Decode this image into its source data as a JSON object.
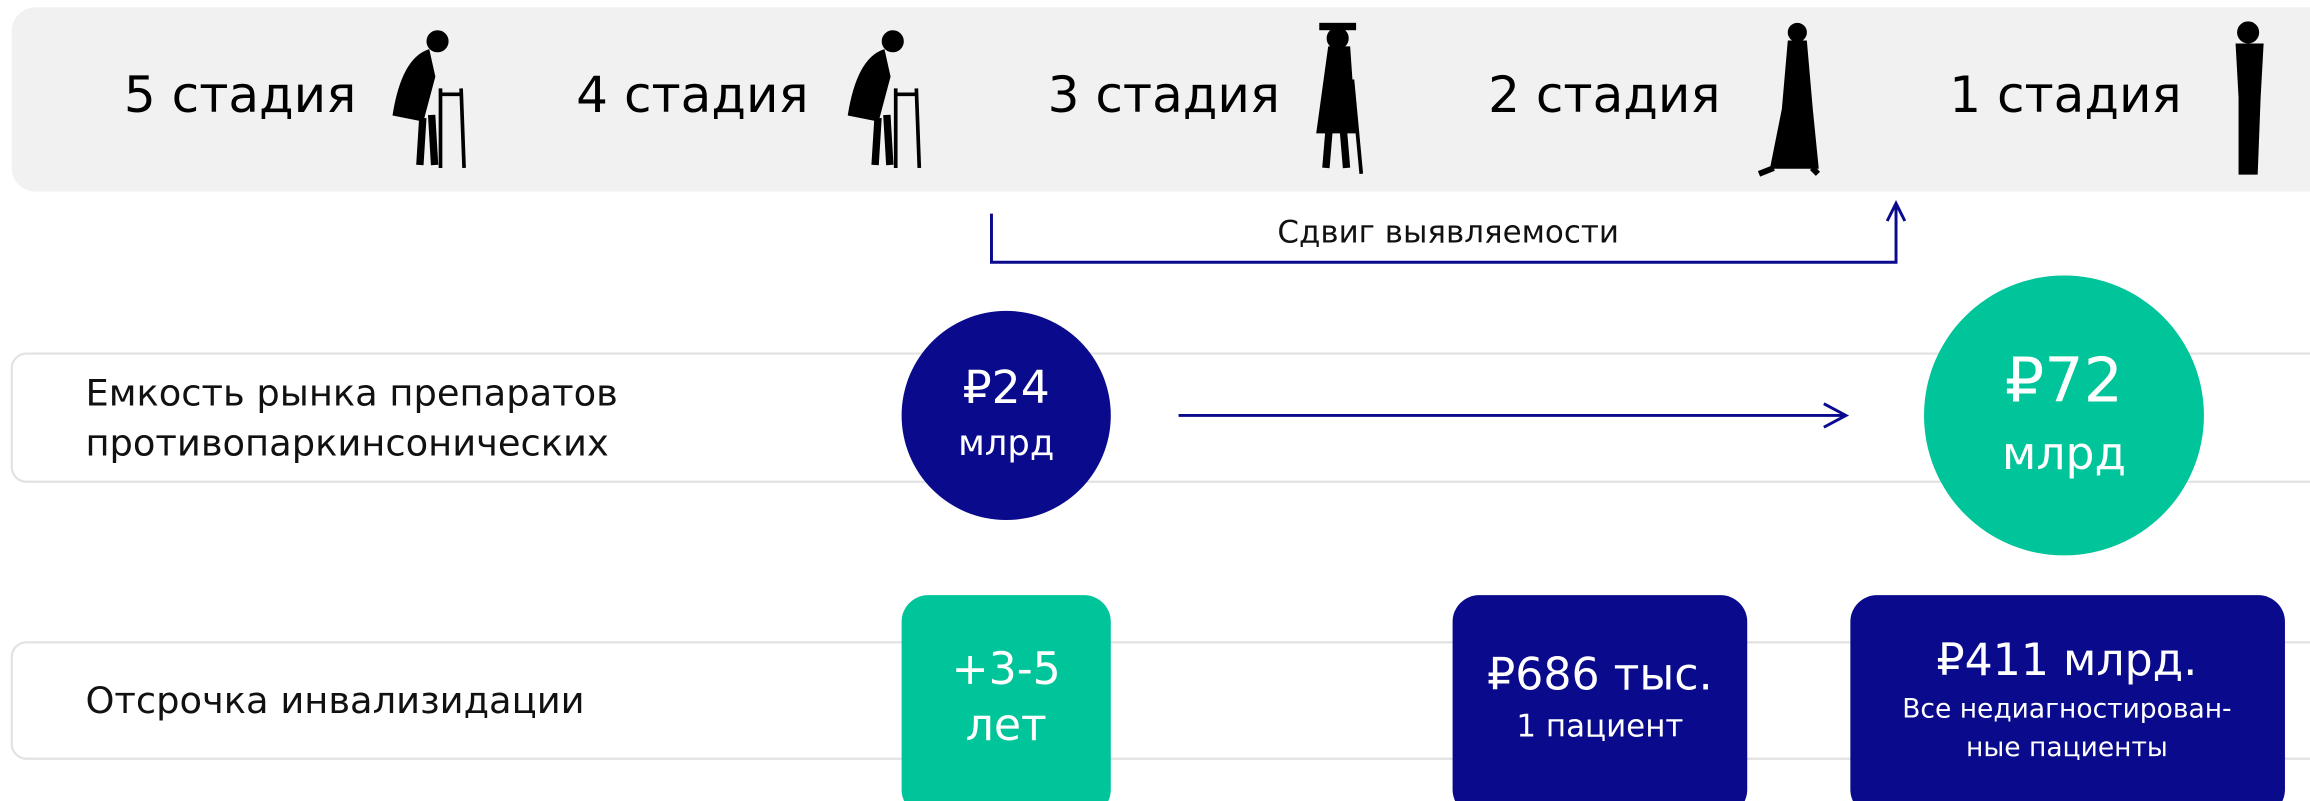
{
  "stages": [
    "5 стадия",
    "4 стадия",
    "3 стадия",
    "2 стадия",
    "1 стадия"
  ],
  "shift_label": "Сдвиг выявляемости",
  "market_row": {
    "label": [
      "Емкость рынка препаратов",
      "противопаркинсонических"
    ],
    "from": {
      "value": "₽24",
      "unit": "млрд"
    },
    "to": {
      "value": "₽72",
      "unit": "млрд"
    }
  },
  "delay_row": {
    "label": "Отсрочка инвализидации",
    "years": {
      "value": "+3-5",
      "unit": "лет"
    },
    "per_patient": {
      "value": "₽686 тыс.",
      "note": "1 пациент"
    },
    "total": {
      "value": "₽411 млрд.",
      "note": [
        "Все недиагностирован-",
        "ные пациенты"
      ]
    }
  }
}
